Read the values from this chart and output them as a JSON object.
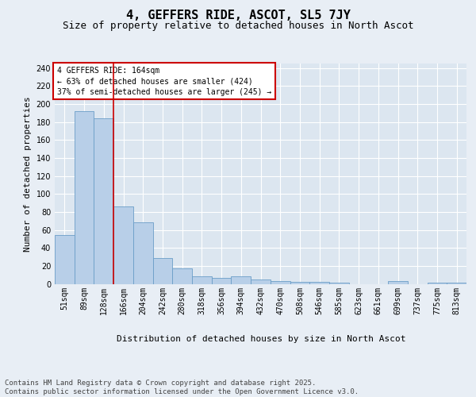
{
  "title": "4, GEFFERS RIDE, ASCOT, SL5 7JY",
  "subtitle": "Size of property relative to detached houses in North Ascot",
  "xlabel": "Distribution of detached houses by size in North Ascot",
  "ylabel": "Number of detached properties",
  "categories": [
    "51sqm",
    "89sqm",
    "128sqm",
    "166sqm",
    "204sqm",
    "242sqm",
    "280sqm",
    "318sqm",
    "356sqm",
    "394sqm",
    "432sqm",
    "470sqm",
    "508sqm",
    "546sqm",
    "585sqm",
    "623sqm",
    "661sqm",
    "699sqm",
    "737sqm",
    "775sqm",
    "813sqm"
  ],
  "values": [
    54,
    192,
    184,
    86,
    68,
    29,
    17,
    8,
    7,
    8,
    5,
    3,
    2,
    2,
    1,
    0,
    0,
    3,
    0,
    1,
    1
  ],
  "bar_color": "#b8cfe8",
  "bar_edge_color": "#6b9ec8",
  "bg_color": "#e8eef5",
  "plot_bg_color": "#dce6f0",
  "grid_color": "#ffffff",
  "vline_color": "#cc0000",
  "annotation_text": "4 GEFFERS RIDE: 164sqm\n← 63% of detached houses are smaller (424)\n37% of semi-detached houses are larger (245) →",
  "annotation_box_color": "#cc0000",
  "footnote": "Contains HM Land Registry data © Crown copyright and database right 2025.\nContains public sector information licensed under the Open Government Licence v3.0.",
  "ylim": [
    0,
    245
  ],
  "yticks": [
    0,
    20,
    40,
    60,
    80,
    100,
    120,
    140,
    160,
    180,
    200,
    220,
    240
  ],
  "title_fontsize": 11,
  "subtitle_fontsize": 9,
  "label_fontsize": 8,
  "tick_fontsize": 7,
  "annotation_fontsize": 7,
  "footnote_fontsize": 6.5
}
